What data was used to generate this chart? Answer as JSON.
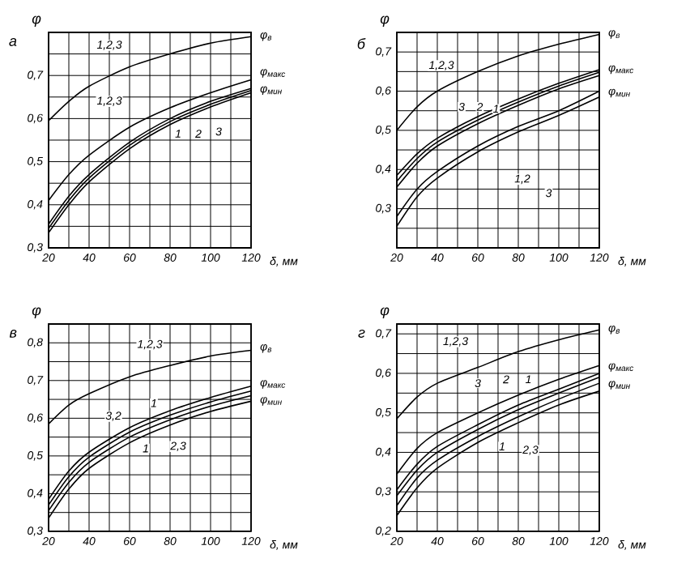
{
  "chart_data": [
    {
      "type": "line",
      "title": "а",
      "ylabel": "φ",
      "xlabel": "δ, мм",
      "grid": true,
      "xlim": [
        20,
        120
      ],
      "ylim": [
        0.3,
        0.8
      ],
      "xticks": [
        20,
        {
          "value": 30,
          "label": null
        },
        40,
        {
          "value": 50,
          "label": null
        },
        60,
        {
          "value": 70,
          "label": null
        },
        80,
        {
          "value": 90,
          "label": null
        },
        100,
        {
          "value": 110,
          "label": null
        },
        120
      ],
      "yticks": [
        {
          "value": 0.3,
          "label": "0,3"
        },
        {
          "value": 0.35,
          "label": null
        },
        {
          "value": 0.4,
          "label": "0,4"
        },
        {
          "value": 0.45,
          "label": null
        },
        {
          "value": 0.5,
          "label": "0,5"
        },
        {
          "value": 0.55,
          "label": null
        },
        {
          "value": 0.6,
          "label": "0,6"
        },
        {
          "value": 0.65,
          "label": null
        },
        {
          "value": 0.7,
          "label": "0,7"
        },
        {
          "value": 0.75,
          "label": null
        },
        {
          "value": 0.8,
          "label": null
        }
      ],
      "x": [
        20,
        30,
        40,
        60,
        80,
        100,
        120
      ],
      "series": [
        {
          "color": "#000000",
          "values": [
            0.595,
            0.64,
            0.675,
            0.72,
            0.75,
            0.775,
            0.79
          ]
        },
        {
          "color": "#000000",
          "values": [
            0.41,
            0.47,
            0.515,
            0.58,
            0.625,
            0.66,
            0.69
          ]
        },
        {
          "color": "#000000",
          "values": [
            0.355,
            0.42,
            0.47,
            0.545,
            0.6,
            0.64,
            0.67
          ]
        },
        {
          "color": "#000000",
          "values": [
            0.345,
            0.41,
            0.462,
            0.538,
            0.593,
            0.633,
            0.665
          ]
        },
        {
          "color": "#000000",
          "values": [
            0.335,
            0.4,
            0.453,
            0.53,
            0.586,
            0.627,
            0.66
          ]
        }
      ],
      "annotations": [
        {
          "text": "1,2,3",
          "x": 50,
          "y": 0.77
        },
        {
          "text": "1,2,3",
          "x": 50,
          "y": 0.64
        },
        {
          "text": "1",
          "x": 84,
          "y": 0.565
        },
        {
          "text": "2",
          "x": 94,
          "y": 0.565
        },
        {
          "text": "3",
          "x": 104,
          "y": 0.57
        },
        {
          "text": "φ$_{в}$",
          "x": 120,
          "y": 0.79
        },
        {
          "text": "φ$_{макс}$",
          "x": 120,
          "y": 0.705
        },
        {
          "text": "φ$_{мин}$",
          "x": 120,
          "y": 0.665
        }
      ]
    },
    {
      "type": "line",
      "title": "б",
      "ylabel": "φ",
      "xlabel": "δ, мм",
      "grid": true,
      "xlim": [
        20,
        120
      ],
      "ylim": [
        0.2,
        0.75
      ],
      "xticks": [
        20,
        {
          "value": 30,
          "label": null
        },
        40,
        {
          "value": 50,
          "label": null
        },
        60,
        {
          "value": 70,
          "label": null
        },
        80,
        {
          "value": 90,
          "label": null
        },
        100,
        {
          "value": 110,
          "label": null
        },
        120
      ],
      "yticks": [
        {
          "value": 0.2,
          "label": null
        },
        {
          "value": 0.25,
          "label": null
        },
        {
          "value": 0.3,
          "label": "0,3"
        },
        {
          "value": 0.35,
          "label": null
        },
        {
          "value": 0.4,
          "label": "0,4"
        },
        {
          "value": 0.45,
          "label": null
        },
        {
          "value": 0.5,
          "label": "0,5"
        },
        {
          "value": 0.55,
          "label": null
        },
        {
          "value": 0.6,
          "label": "0,6"
        },
        {
          "value": 0.65,
          "label": null
        },
        {
          "value": 0.7,
          "label": "0,7"
        },
        {
          "value": 0.75,
          "label": null
        }
      ],
      "x": [
        20,
        30,
        40,
        60,
        80,
        100,
        120
      ],
      "series": [
        {
          "color": "#000000",
          "values": [
            0.5,
            0.56,
            0.6,
            0.65,
            0.69,
            0.72,
            0.745
          ]
        },
        {
          "color": "#000000",
          "values": [
            0.385,
            0.44,
            0.48,
            0.535,
            0.58,
            0.62,
            0.655
          ]
        },
        {
          "color": "#000000",
          "values": [
            0.37,
            0.428,
            0.47,
            0.526,
            0.572,
            0.613,
            0.648
          ]
        },
        {
          "color": "#000000",
          "values": [
            0.355,
            0.416,
            0.46,
            0.517,
            0.564,
            0.606,
            0.64
          ]
        },
        {
          "color": "#000000",
          "values": [
            0.28,
            0.35,
            0.395,
            0.46,
            0.51,
            0.55,
            0.6
          ]
        },
        {
          "color": "#000000",
          "values": [
            0.255,
            0.33,
            0.378,
            0.445,
            0.496,
            0.538,
            0.585
          ]
        }
      ],
      "annotations": [
        {
          "text": "1,2,3",
          "x": 42,
          "y": 0.665
        },
        {
          "text": "3",
          "x": 52,
          "y": 0.56
        },
        {
          "text": "2",
          "x": 61,
          "y": 0.56
        },
        {
          "text": "1",
          "x": 69,
          "y": 0.555
        },
        {
          "text": "1,2",
          "x": 82,
          "y": 0.375
        },
        {
          "text": "3",
          "x": 95,
          "y": 0.34
        },
        {
          "text": "φ$_{в}$",
          "x": 120,
          "y": 0.745
        },
        {
          "text": "φ$_{макс}$",
          "x": 120,
          "y": 0.655
        },
        {
          "text": "φ$_{мин}$",
          "x": 120,
          "y": 0.595
        }
      ]
    },
    {
      "type": "line",
      "title": "в",
      "ylabel": "φ",
      "xlabel": "δ, мм",
      "grid": true,
      "xlim": [
        20,
        120
      ],
      "ylim": [
        0.3,
        0.85
      ],
      "xticks": [
        20,
        {
          "value": 30,
          "label": null
        },
        40,
        {
          "value": 50,
          "label": null
        },
        60,
        {
          "value": 70,
          "label": null
        },
        80,
        {
          "value": 90,
          "label": null
        },
        100,
        {
          "value": 110,
          "label": null
        },
        120
      ],
      "yticks": [
        {
          "value": 0.3,
          "label": "0,3"
        },
        {
          "value": 0.35,
          "label": null
        },
        {
          "value": 0.4,
          "label": "0,4"
        },
        {
          "value": 0.45,
          "label": null
        },
        {
          "value": 0.5,
          "label": "0,5"
        },
        {
          "value": 0.55,
          "label": null
        },
        {
          "value": 0.6,
          "label": "0,6"
        },
        {
          "value": 0.65,
          "label": null
        },
        {
          "value": 0.7,
          "label": "0,7"
        },
        {
          "value": 0.75,
          "label": null
        },
        {
          "value": 0.8,
          "label": "0,8"
        },
        {
          "value": 0.85,
          "label": null
        }
      ],
      "x": [
        20,
        30,
        40,
        60,
        80,
        100,
        120
      ],
      "series": [
        {
          "color": "#000000",
          "values": [
            0.585,
            0.635,
            0.665,
            0.71,
            0.74,
            0.765,
            0.78
          ]
        },
        {
          "color": "#000000",
          "values": [
            0.385,
            0.46,
            0.51,
            0.575,
            0.62,
            0.655,
            0.685
          ]
        },
        {
          "color": "#000000",
          "values": [
            0.37,
            0.445,
            0.497,
            0.563,
            0.608,
            0.643,
            0.672
          ]
        },
        {
          "color": "#000000",
          "values": [
            0.355,
            0.43,
            0.483,
            0.55,
            0.596,
            0.632,
            0.66
          ]
        },
        {
          "color": "#000000",
          "values": [
            0.335,
            0.412,
            0.467,
            0.535,
            0.582,
            0.618,
            0.645
          ]
        }
      ],
      "annotations": [
        {
          "text": "1,2,3",
          "x": 70,
          "y": 0.795
        },
        {
          "text": "3,2",
          "x": 52,
          "y": 0.605
        },
        {
          "text": "1",
          "x": 72,
          "y": 0.64
        },
        {
          "text": "1",
          "x": 68,
          "y": 0.52
        },
        {
          "text": "2,3",
          "x": 84,
          "y": 0.525
        },
        {
          "text": "φ$_{в}$",
          "x": 120,
          "y": 0.785
        },
        {
          "text": "φ$_{макс}$",
          "x": 120,
          "y": 0.69
        },
        {
          "text": "φ$_{мин}$",
          "x": 120,
          "y": 0.645
        }
      ]
    },
    {
      "type": "line",
      "title": "г",
      "ylabel": "φ",
      "xlabel": "δ, мм",
      "grid": true,
      "xlim": [
        20,
        120
      ],
      "ylim": [
        0.2,
        0.725
      ],
      "xticks": [
        20,
        {
          "value": 30,
          "label": null
        },
        40,
        {
          "value": 50,
          "label": null
        },
        60,
        {
          "value": 70,
          "label": null
        },
        80,
        {
          "value": 90,
          "label": null
        },
        100,
        {
          "value": 110,
          "label": null
        },
        120
      ],
      "yticks": [
        {
          "value": 0.2,
          "label": "0,2"
        },
        {
          "value": 0.25,
          "label": null
        },
        {
          "value": 0.3,
          "label": "0,3"
        },
        {
          "value": 0.35,
          "label": null
        },
        {
          "value": 0.4,
          "label": "0,4"
        },
        {
          "value": 0.45,
          "label": null
        },
        {
          "value": 0.5,
          "label": "0,5"
        },
        {
          "value": 0.55,
          "label": null
        },
        {
          "value": 0.6,
          "label": "0,6"
        },
        {
          "value": 0.65,
          "label": null
        },
        {
          "value": 0.7,
          "label": "0,7"
        }
      ],
      "x": [
        20,
        30,
        40,
        60,
        80,
        100,
        120
      ],
      "series": [
        {
          "color": "#000000",
          "values": [
            0.485,
            0.54,
            0.575,
            0.615,
            0.655,
            0.685,
            0.71
          ]
        },
        {
          "color": "#000000",
          "values": [
            0.345,
            0.41,
            0.45,
            0.5,
            0.545,
            0.585,
            0.62
          ]
        },
        {
          "color": "#000000",
          "values": [
            0.305,
            0.37,
            0.415,
            0.47,
            0.52,
            0.56,
            0.6
          ]
        },
        {
          "color": "#000000",
          "values": [
            0.29,
            0.355,
            0.4,
            0.458,
            0.508,
            0.55,
            0.59
          ]
        },
        {
          "color": "#000000",
          "values": [
            0.265,
            0.335,
            0.38,
            0.44,
            0.49,
            0.535,
            0.575
          ]
        },
        {
          "color": "#000000",
          "values": [
            0.24,
            0.31,
            0.36,
            0.425,
            0.475,
            0.52,
            0.555
          ]
        }
      ],
      "annotations": [
        {
          "text": "1,2,3",
          "x": 49,
          "y": 0.68
        },
        {
          "text": "3",
          "x": 60,
          "y": 0.575
        },
        {
          "text": "2",
          "x": 74,
          "y": 0.585
        },
        {
          "text": "1",
          "x": 85,
          "y": 0.585
        },
        {
          "text": "1",
          "x": 72,
          "y": 0.415
        },
        {
          "text": "2,3",
          "x": 86,
          "y": 0.405
        },
        {
          "text": "φ$_{в}$",
          "x": 120,
          "y": 0.71
        },
        {
          "text": "φ$_{макс}$",
          "x": 120,
          "y": 0.615
        },
        {
          "text": "φ$_{мин}$",
          "x": 120,
          "y": 0.57
        }
      ]
    }
  ]
}
